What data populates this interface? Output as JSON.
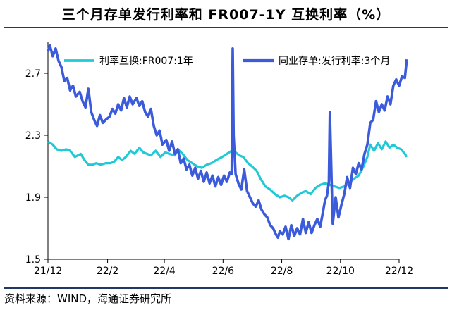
{
  "title": "三个月存单发行利率和 FR007-1Y 互换利率（%）",
  "source": "资料来源：WIND，海通证券研究所",
  "colors": {
    "series_swap": "#21c9d6",
    "series_ncd": "#3b5bdb",
    "rule": "#1f3864"
  },
  "chart_data": {
    "type": "line",
    "title": "三个月存单发行利率和 FR007-1Y 互换利率（%）",
    "xlabel": "",
    "ylabel": "",
    "x_range": [
      "2021-12-01",
      "2022-12-10"
    ],
    "x_ticks": [
      {
        "label": "21/12",
        "date": "2021-12-01"
      },
      {
        "label": "22/2",
        "date": "2022-02-01"
      },
      {
        "label": "22/4",
        "date": "2022-04-01"
      },
      {
        "label": "22/6",
        "date": "2022-06-01"
      },
      {
        "label": "22/8",
        "date": "2022-08-01"
      },
      {
        "label": "22/10",
        "date": "2022-10-01"
      },
      {
        "label": "22/12",
        "date": "2022-12-01"
      }
    ],
    "ylim": [
      1.5,
      2.9
    ],
    "y_ticks": [
      1.5,
      1.9,
      2.3,
      2.7
    ],
    "grid": false,
    "legend_position": "top",
    "series": [
      {
        "name": "利率互换:FR007:1年",
        "points": [
          [
            "2021-12-01",
            2.26
          ],
          [
            "2021-12-06",
            2.24
          ],
          [
            "2021-12-10",
            2.21
          ],
          [
            "2021-12-15",
            2.2
          ],
          [
            "2021-12-20",
            2.21
          ],
          [
            "2021-12-24",
            2.2
          ],
          [
            "2021-12-29",
            2.16
          ],
          [
            "2022-01-04",
            2.18
          ],
          [
            "2022-01-08",
            2.14
          ],
          [
            "2022-01-12",
            2.11
          ],
          [
            "2022-01-17",
            2.11
          ],
          [
            "2022-01-20",
            2.12
          ],
          [
            "2022-01-25",
            2.11
          ],
          [
            "2022-01-30",
            2.12
          ],
          [
            "2022-02-04",
            2.12
          ],
          [
            "2022-02-08",
            2.13
          ],
          [
            "2022-02-12",
            2.16
          ],
          [
            "2022-02-16",
            2.14
          ],
          [
            "2022-02-20",
            2.16
          ],
          [
            "2022-02-25",
            2.2
          ],
          [
            "2022-03-01",
            2.18
          ],
          [
            "2022-03-06",
            2.22
          ],
          [
            "2022-03-10",
            2.19
          ],
          [
            "2022-03-14",
            2.18
          ],
          [
            "2022-03-18",
            2.17
          ],
          [
            "2022-03-23",
            2.2
          ],
          [
            "2022-03-28",
            2.16
          ],
          [
            "2022-04-02",
            2.19
          ],
          [
            "2022-04-06",
            2.18
          ],
          [
            "2022-04-12",
            2.17
          ],
          [
            "2022-04-15",
            2.21
          ],
          [
            "2022-04-20",
            2.18
          ],
          [
            "2022-04-25",
            2.14
          ],
          [
            "2022-04-30",
            2.12
          ],
          [
            "2022-05-05",
            2.1
          ],
          [
            "2022-05-10",
            2.09
          ],
          [
            "2022-05-15",
            2.11
          ],
          [
            "2022-05-20",
            2.12
          ],
          [
            "2022-05-25",
            2.14
          ],
          [
            "2022-05-31",
            2.16
          ],
          [
            "2022-06-05",
            2.18
          ],
          [
            "2022-06-10",
            2.2
          ],
          [
            "2022-06-14",
            2.19
          ],
          [
            "2022-06-18",
            2.17
          ],
          [
            "2022-06-22",
            2.16
          ],
          [
            "2022-06-27",
            2.12
          ],
          [
            "2022-07-01",
            2.1
          ],
          [
            "2022-07-06",
            2.07
          ],
          [
            "2022-07-10",
            2.02
          ],
          [
            "2022-07-15",
            1.97
          ],
          [
            "2022-07-20",
            1.95
          ],
          [
            "2022-07-25",
            1.92
          ],
          [
            "2022-07-30",
            1.9
          ],
          [
            "2022-08-04",
            1.91
          ],
          [
            "2022-08-08",
            1.9
          ],
          [
            "2022-08-12",
            1.88
          ],
          [
            "2022-08-17",
            1.91
          ],
          [
            "2022-08-22",
            1.93
          ],
          [
            "2022-08-26",
            1.94
          ],
          [
            "2022-08-31",
            1.92
          ],
          [
            "2022-09-05",
            1.96
          ],
          [
            "2022-09-10",
            1.98
          ],
          [
            "2022-09-15",
            1.99
          ],
          [
            "2022-09-20",
            1.98
          ],
          [
            "2022-09-25",
            1.97
          ],
          [
            "2022-09-30",
            1.96
          ],
          [
            "2022-10-05",
            1.97
          ],
          [
            "2022-10-10",
            1.99
          ],
          [
            "2022-10-15",
            2.02
          ],
          [
            "2022-10-20",
            2.04
          ],
          [
            "2022-10-25",
            2.1
          ],
          [
            "2022-10-29",
            2.16
          ],
          [
            "2022-11-01",
            2.24
          ],
          [
            "2022-11-05",
            2.2
          ],
          [
            "2022-11-09",
            2.25
          ],
          [
            "2022-11-13",
            2.21
          ],
          [
            "2022-11-17",
            2.26
          ],
          [
            "2022-11-21",
            2.22
          ],
          [
            "2022-11-25",
            2.24
          ],
          [
            "2022-11-29",
            2.22
          ],
          [
            "2022-12-03",
            2.21
          ],
          [
            "2022-12-07",
            2.18
          ],
          [
            "2022-12-09",
            2.16
          ]
        ]
      },
      {
        "name": "同业存单:发行利率:3个月",
        "points": [
          [
            "2021-12-01",
            2.84
          ],
          [
            "2021-12-03",
            2.88
          ],
          [
            "2021-12-06",
            2.81
          ],
          [
            "2021-12-09",
            2.86
          ],
          [
            "2021-12-12",
            2.78
          ],
          [
            "2021-12-15",
            2.74
          ],
          [
            "2021-12-18",
            2.65
          ],
          [
            "2021-12-21",
            2.67
          ],
          [
            "2021-12-24",
            2.59
          ],
          [
            "2021-12-27",
            2.62
          ],
          [
            "2021-12-30",
            2.55
          ],
          [
            "2022-01-03",
            2.58
          ],
          [
            "2022-01-06",
            2.52
          ],
          [
            "2022-01-09",
            2.48
          ],
          [
            "2022-01-12",
            2.6
          ],
          [
            "2022-01-15",
            2.45
          ],
          [
            "2022-01-18",
            2.4
          ],
          [
            "2022-01-21",
            2.36
          ],
          [
            "2022-01-24",
            2.43
          ],
          [
            "2022-01-27",
            2.38
          ],
          [
            "2022-01-30",
            2.4
          ],
          [
            "2022-02-03",
            2.42
          ],
          [
            "2022-02-06",
            2.47
          ],
          [
            "2022-02-09",
            2.44
          ],
          [
            "2022-02-12",
            2.5
          ],
          [
            "2022-02-15",
            2.46
          ],
          [
            "2022-02-18",
            2.54
          ],
          [
            "2022-02-21",
            2.48
          ],
          [
            "2022-02-24",
            2.55
          ],
          [
            "2022-02-27",
            2.5
          ],
          [
            "2022-03-03",
            2.54
          ],
          [
            "2022-03-06",
            2.49
          ],
          [
            "2022-03-09",
            2.52
          ],
          [
            "2022-03-12",
            2.45
          ],
          [
            "2022-03-15",
            2.42
          ],
          [
            "2022-03-18",
            2.47
          ],
          [
            "2022-03-21",
            2.36
          ],
          [
            "2022-03-24",
            2.3
          ],
          [
            "2022-03-27",
            2.33
          ],
          [
            "2022-03-30",
            2.24
          ],
          [
            "2022-04-03",
            2.27
          ],
          [
            "2022-04-06",
            2.2
          ],
          [
            "2022-04-09",
            2.26
          ],
          [
            "2022-04-12",
            2.18
          ],
          [
            "2022-04-15",
            2.21
          ],
          [
            "2022-04-18",
            2.12
          ],
          [
            "2022-04-21",
            2.15
          ],
          [
            "2022-04-24",
            2.08
          ],
          [
            "2022-04-27",
            2.11
          ],
          [
            "2022-04-30",
            2.04
          ],
          [
            "2022-05-03",
            2.09
          ],
          [
            "2022-05-06",
            2.02
          ],
          [
            "2022-05-09",
            2.07
          ],
          [
            "2022-05-12",
            2.0
          ],
          [
            "2022-05-15",
            2.06
          ],
          [
            "2022-05-18",
            1.99
          ],
          [
            "2022-05-21",
            2.04
          ],
          [
            "2022-05-24",
            1.97
          ],
          [
            "2022-05-27",
            2.03
          ],
          [
            "2022-05-30",
            1.98
          ],
          [
            "2022-06-02",
            2.04
          ],
          [
            "2022-06-05",
            2.0
          ],
          [
            "2022-06-08",
            2.06
          ],
          [
            "2022-06-10",
            2.05
          ],
          [
            "2022-06-11",
            2.86
          ],
          [
            "2022-06-12",
            2.3
          ],
          [
            "2022-06-14",
            2.05
          ],
          [
            "2022-06-17",
            1.99
          ],
          [
            "2022-06-20",
            1.95
          ],
          [
            "2022-06-23",
            2.08
          ],
          [
            "2022-06-26",
            1.94
          ],
          [
            "2022-06-29",
            1.9
          ],
          [
            "2022-07-02",
            1.86
          ],
          [
            "2022-07-05",
            1.84
          ],
          [
            "2022-07-08",
            1.88
          ],
          [
            "2022-07-11",
            1.82
          ],
          [
            "2022-07-14",
            1.79
          ],
          [
            "2022-07-17",
            1.77
          ],
          [
            "2022-07-20",
            1.72
          ],
          [
            "2022-07-23",
            1.7
          ],
          [
            "2022-07-26",
            1.66
          ],
          [
            "2022-07-28",
            1.64
          ],
          [
            "2022-07-30",
            1.68
          ],
          [
            "2022-08-02",
            1.66
          ],
          [
            "2022-08-05",
            1.71
          ],
          [
            "2022-08-08",
            1.63
          ],
          [
            "2022-08-11",
            1.72
          ],
          [
            "2022-08-14",
            1.65
          ],
          [
            "2022-08-17",
            1.7
          ],
          [
            "2022-08-20",
            1.66
          ],
          [
            "2022-08-23",
            1.76
          ],
          [
            "2022-08-26",
            1.67
          ],
          [
            "2022-08-29",
            1.74
          ],
          [
            "2022-09-01",
            1.67
          ],
          [
            "2022-09-04",
            1.72
          ],
          [
            "2022-09-07",
            1.76
          ],
          [
            "2022-09-10",
            1.71
          ],
          [
            "2022-09-13",
            1.81
          ],
          [
            "2022-09-15",
            1.88
          ],
          [
            "2022-09-17",
            1.91
          ],
          [
            "2022-09-19",
            2.0
          ],
          [
            "2022-09-20",
            2.45
          ],
          [
            "2022-09-22",
            1.96
          ],
          [
            "2022-09-23",
            1.73
          ],
          [
            "2022-09-26",
            1.9
          ],
          [
            "2022-09-29",
            1.77
          ],
          [
            "2022-10-02",
            1.85
          ],
          [
            "2022-10-05",
            1.92
          ],
          [
            "2022-10-08",
            2.03
          ],
          [
            "2022-10-11",
            1.96
          ],
          [
            "2022-10-14",
            2.09
          ],
          [
            "2022-10-17",
            2.05
          ],
          [
            "2022-10-20",
            2.12
          ],
          [
            "2022-10-23",
            2.08
          ],
          [
            "2022-10-26",
            2.18
          ],
          [
            "2022-10-29",
            2.24
          ],
          [
            "2022-11-01",
            2.38
          ],
          [
            "2022-11-04",
            2.4
          ],
          [
            "2022-11-07",
            2.52
          ],
          [
            "2022-11-10",
            2.45
          ],
          [
            "2022-11-13",
            2.5
          ],
          [
            "2022-11-16",
            2.46
          ],
          [
            "2022-11-19",
            2.55
          ],
          [
            "2022-11-22",
            2.5
          ],
          [
            "2022-11-25",
            2.62
          ],
          [
            "2022-11-28",
            2.66
          ],
          [
            "2022-12-01",
            2.62
          ],
          [
            "2022-12-04",
            2.68
          ],
          [
            "2022-12-07",
            2.67
          ],
          [
            "2022-12-09",
            2.79
          ]
        ]
      }
    ]
  }
}
